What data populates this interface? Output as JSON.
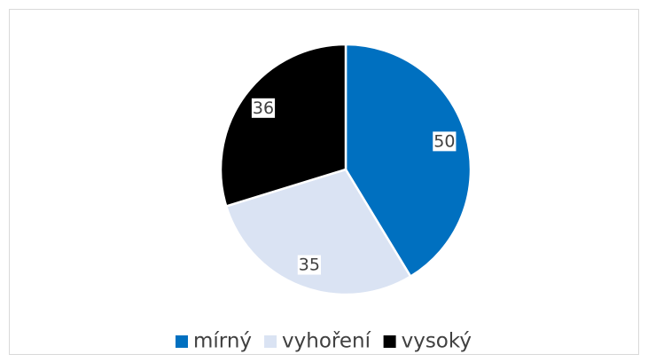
{
  "chart_data": {
    "type": "pie",
    "categories": [
      "mírný",
      "vyhoření",
      "vysoký"
    ],
    "values": [
      50,
      35,
      36
    ],
    "colors": [
      "#0070c0",
      "#dae3f3",
      "#000000"
    ],
    "legend": "bottom"
  }
}
